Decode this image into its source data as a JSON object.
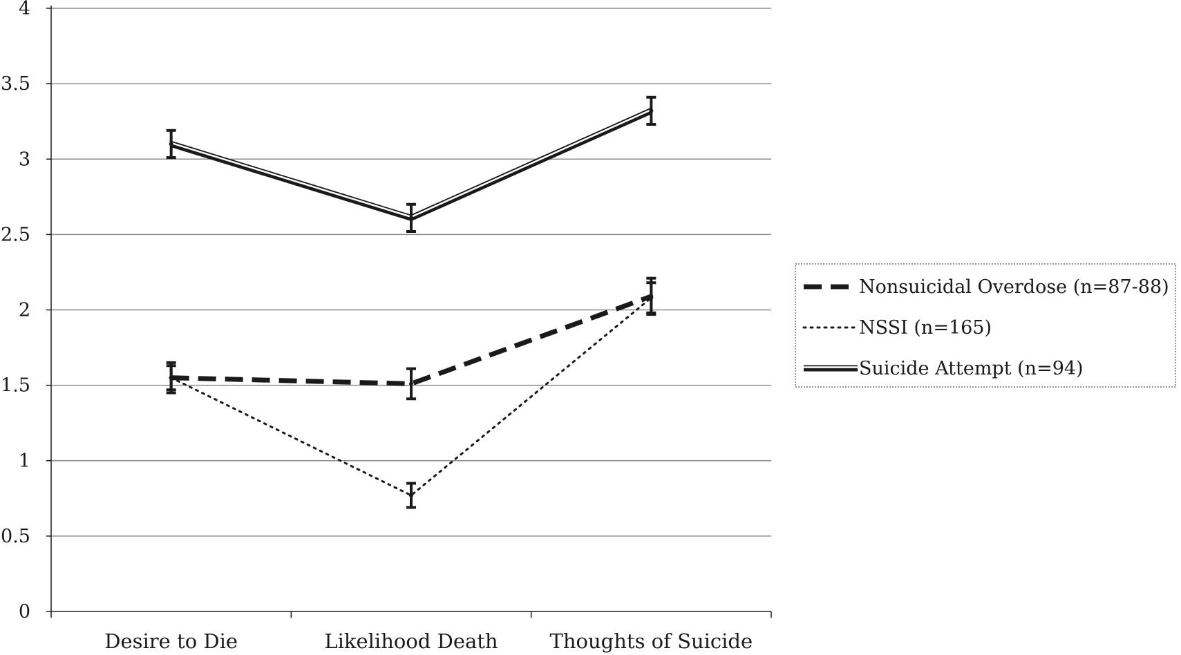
{
  "chart_data": {
    "type": "line",
    "title": "",
    "xlabel": "",
    "ylabel": "",
    "categories": [
      "Desire to Die",
      "Likelihood Death",
      "Thoughts of Suicide"
    ],
    "ylim": [
      0,
      4
    ],
    "yticks": [
      "0",
      "0.5",
      "1",
      "1.5",
      "2",
      "2.5",
      "3",
      "3.5",
      "4"
    ],
    "grid": "horizontal",
    "legend_position": "right",
    "series": [
      {
        "name": "Nonsuicidal Overdose (n=87-88)",
        "style": "dashed",
        "color": "#1a1a1a",
        "values": [
          1.55,
          1.51,
          2.09
        ],
        "error": [
          0.1,
          0.1,
          0.12
        ]
      },
      {
        "name": "NSSI (n=165)",
        "style": "dotted",
        "color": "#1a1a1a",
        "values": [
          1.55,
          0.77,
          2.08
        ],
        "error": [
          0.08,
          0.08,
          0.1
        ]
      },
      {
        "name": "Suicide Attempt (n=94)",
        "style": "double",
        "color": "#1a1a1a",
        "values": [
          3.1,
          2.61,
          3.32
        ],
        "error": [
          0.09,
          0.09,
          0.09
        ]
      }
    ]
  }
}
